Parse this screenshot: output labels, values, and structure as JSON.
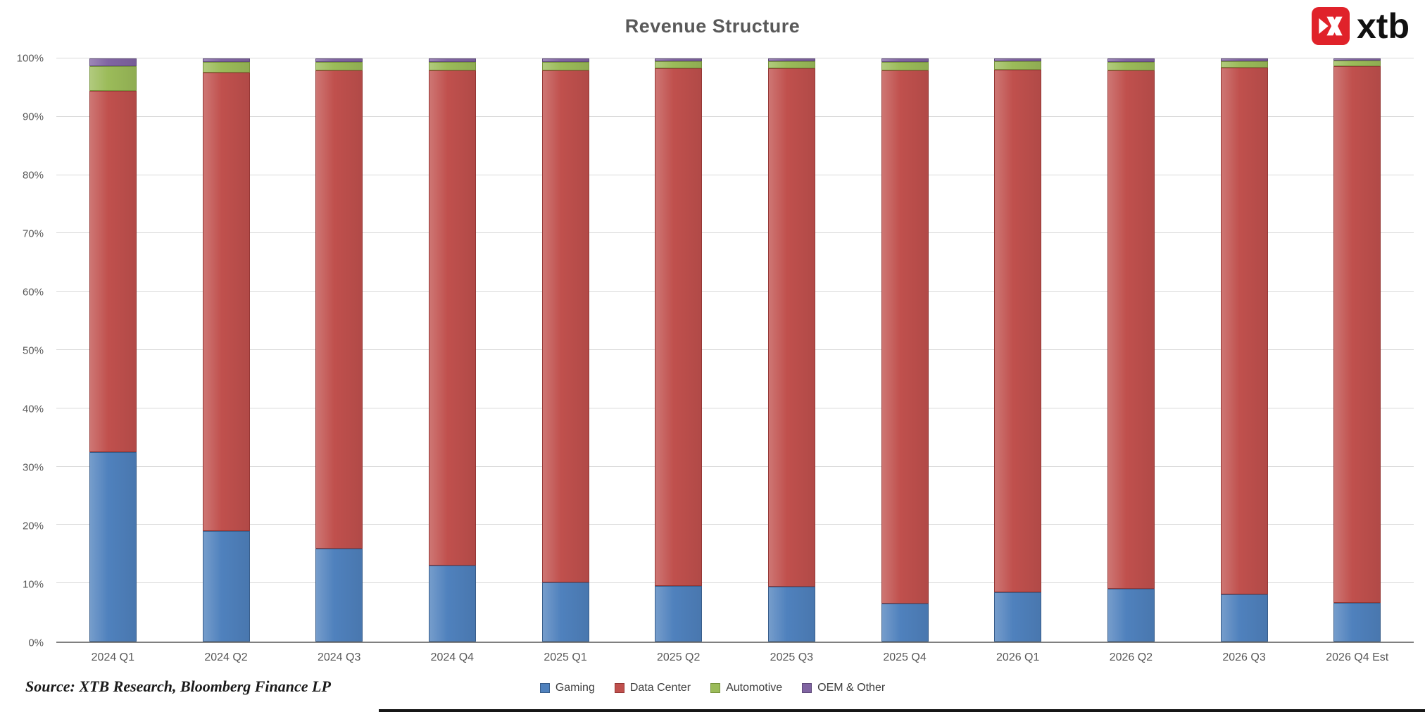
{
  "title": "Revenue Structure",
  "logo": {
    "brand_text": "xtb",
    "brand_color": "#E0222A"
  },
  "source_text": "Source: XTB Research, Bloomberg Finance LP",
  "chart_data": {
    "type": "bar",
    "stacked": true,
    "title": "Revenue Structure",
    "xlabel": "",
    "ylabel": "",
    "ylim": [
      0,
      100
    ],
    "grid": true,
    "legend_position": "bottom",
    "y_ticks": [
      "0%",
      "10%",
      "20%",
      "30%",
      "40%",
      "50%",
      "60%",
      "70%",
      "80%",
      "90%",
      "100%"
    ],
    "categories": [
      "2024 Q1",
      "2024 Q2",
      "2024 Q3",
      "2024 Q4",
      "2025 Q1",
      "2025 Q2",
      "2025 Q3",
      "2025 Q4",
      "2026 Q1",
      "2026 Q2",
      "2026 Q3",
      "2026 Q4 Est"
    ],
    "series": [
      {
        "name": "Gaming",
        "color": "#4F81BD",
        "border": "#385D8A",
        "values": [
          32.5,
          19.0,
          16.0,
          13.1,
          10.2,
          9.6,
          9.4,
          6.5,
          8.5,
          9.1,
          8.1,
          6.7
        ]
      },
      {
        "name": "Data Center",
        "color": "#C0504D",
        "border": "#953735",
        "values": [
          62.0,
          78.6,
          81.9,
          84.8,
          87.7,
          88.7,
          88.9,
          91.4,
          89.6,
          88.9,
          90.3,
          92.0
        ]
      },
      {
        "name": "Automotive",
        "color": "#9BBB59",
        "border": "#77933C",
        "values": [
          4.2,
          1.8,
          1.5,
          1.5,
          1.5,
          1.2,
          1.2,
          1.5,
          1.4,
          1.4,
          1.1,
          1.0
        ]
      },
      {
        "name": "OEM & Other",
        "color": "#8064A2",
        "border": "#604A7B",
        "values": [
          1.3,
          0.6,
          0.6,
          0.6,
          0.6,
          0.5,
          0.5,
          0.6,
          0.5,
          0.6,
          0.5,
          0.3
        ]
      }
    ]
  }
}
